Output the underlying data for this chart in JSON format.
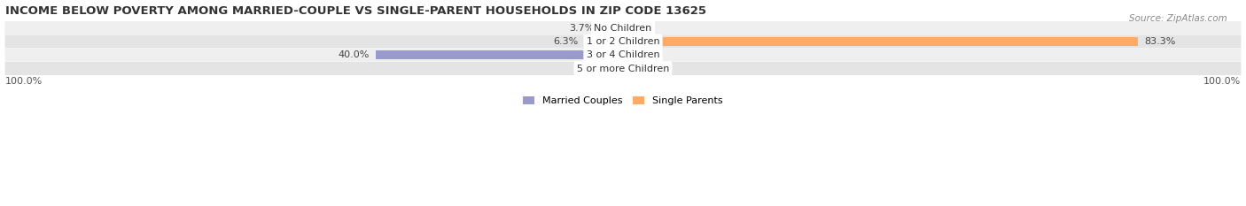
{
  "title": "INCOME BELOW POVERTY AMONG MARRIED-COUPLE VS SINGLE-PARENT HOUSEHOLDS IN ZIP CODE 13625",
  "source": "Source: ZipAtlas.com",
  "categories": [
    "No Children",
    "1 or 2 Children",
    "3 or 4 Children",
    "5 or more Children"
  ],
  "married_values": [
    3.7,
    6.3,
    40.0,
    0.0
  ],
  "single_values": [
    0.0,
    83.3,
    0.0,
    0.0
  ],
  "married_color": "#9999CC",
  "single_color": "#FFAA66",
  "married_color_bar": "#AAAADD",
  "single_color_bar": "#FFBB77",
  "row_bg_even": "#EFEFEF",
  "row_bg_odd": "#E4E4E4",
  "max_val": 100.0,
  "label_married": "Married Couples",
  "label_single": "Single Parents",
  "title_fontsize": 9.5,
  "source_fontsize": 7.5,
  "bar_label_fontsize": 8,
  "category_fontsize": 8,
  "legend_fontsize": 8,
  "axis_label_fontsize": 8
}
